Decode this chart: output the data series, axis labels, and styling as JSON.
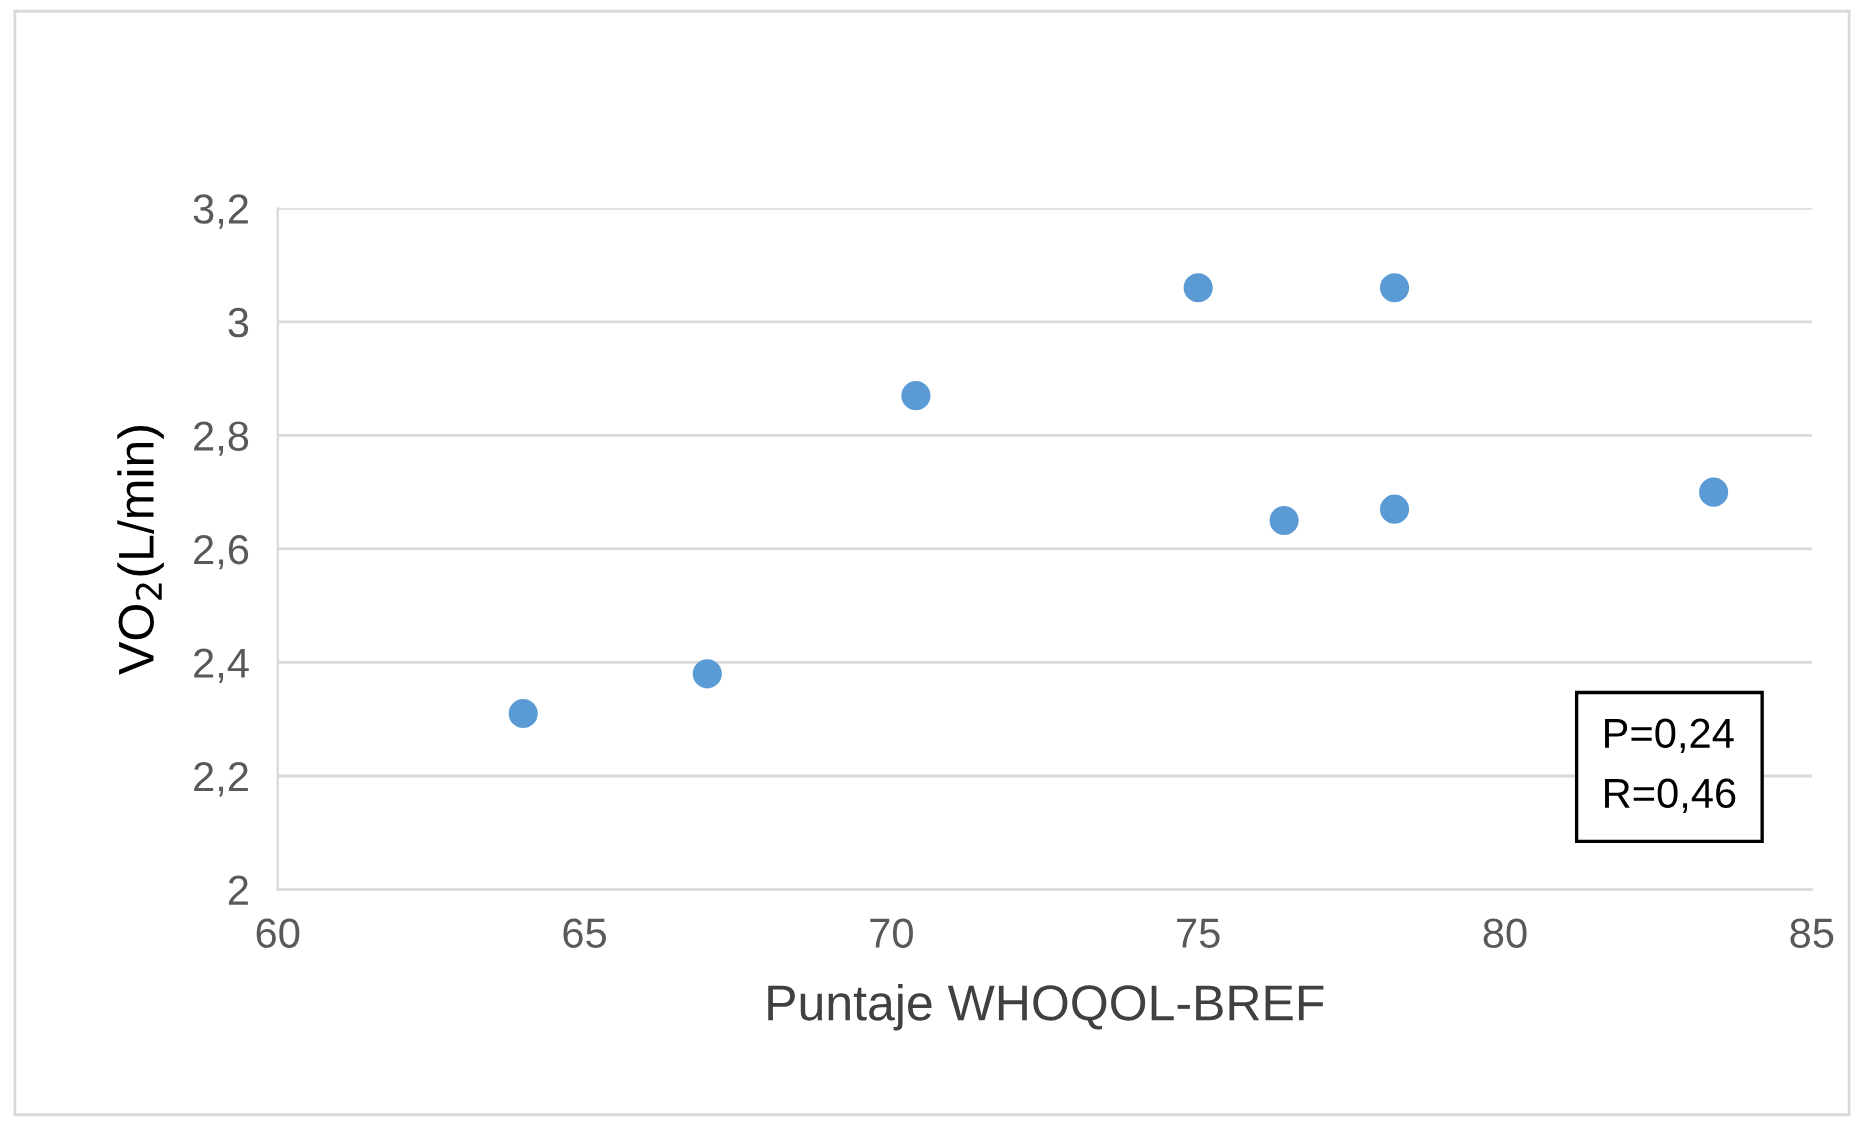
{
  "chart_data": {
    "type": "scatter",
    "xlabel": "Puntaje WHOQOL-BREF",
    "ylabel": "VO$_{2}$(L/min)",
    "x": [
      64,
      67,
      70.4,
      75,
      76.4,
      78.2,
      78.2,
      83.4
    ],
    "series": [
      {
        "color": "#5b9bd5",
        "values": [
          2.31,
          2.38,
          2.87,
          3.06,
          2.65,
          2.67,
          3.06,
          2.7
        ]
      }
    ],
    "xlim": [
      60,
      85
    ],
    "xticks": [
      60,
      65,
      70,
      75,
      80,
      85
    ],
    "ylim": [
      2,
      3.2
    ],
    "yticks": [
      {
        "value": 2,
        "label": "2"
      },
      {
        "value": 2.2,
        "label": "2,2"
      },
      {
        "value": 2.4,
        "label": "2,4"
      },
      {
        "value": 2.6,
        "label": "2,6"
      },
      {
        "value": 2.8,
        "label": "2,8"
      },
      {
        "value": 3,
        "label": "3"
      },
      {
        "value": 3.2,
        "label": "3,2"
      }
    ],
    "grid": "y",
    "marker": "circle",
    "legend": false,
    "annotations": [
      "P=0,24\nR=0,46"
    ]
  }
}
